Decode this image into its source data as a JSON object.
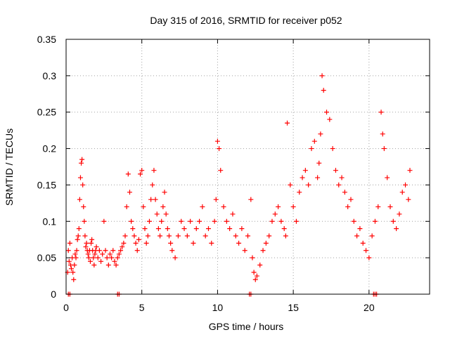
{
  "chart_data": {
    "type": "scatter",
    "title": "Day 315 of 2016, SRMTID for receiver p052",
    "xlabel": "GPS time / hours",
    "ylabel": "SRMTID / TECUs",
    "xlim": [
      0,
      24
    ],
    "ylim": [
      0,
      0.35
    ],
    "xticks": [
      0,
      5,
      10,
      15,
      20
    ],
    "yticks": [
      0,
      0.05,
      0.1,
      0.15,
      0.2,
      0.25,
      0.3,
      0.35
    ],
    "xtick_labels": [
      "0",
      "5",
      "10",
      "15",
      "20"
    ],
    "ytick_labels": [
      "0",
      "0.05",
      "0.1",
      "0.15",
      "0.2",
      "0.25",
      "0.3",
      "0.35"
    ],
    "grid": true,
    "marker": "+",
    "color": "#ff0000",
    "series": [
      {
        "name": "SRMTID",
        "x": [
          0.1,
          0.15,
          0.2,
          0.25,
          0.3,
          0.35,
          0.4,
          0.45,
          0.5,
          0.55,
          0.6,
          0.65,
          0.7,
          0.75,
          0.8,
          0.85,
          0.9,
          0.95,
          1.0,
          1.05,
          1.1,
          1.15,
          1.2,
          1.25,
          1.3,
          1.35,
          1.4,
          1.45,
          1.5,
          1.55,
          1.6,
          1.65,
          1.7,
          1.75,
          1.8,
          1.85,
          1.9,
          1.95,
          2.0,
          2.1,
          2.2,
          2.3,
          2.4,
          2.5,
          2.6,
          2.7,
          2.8,
          2.9,
          3.0,
          3.1,
          3.2,
          3.3,
          3.4,
          3.5,
          3.6,
          3.7,
          3.8,
          3.9,
          4.0,
          4.1,
          4.2,
          4.3,
          4.4,
          4.5,
          4.6,
          4.7,
          4.8,
          4.9,
          5.0,
          5.1,
          5.2,
          5.3,
          5.4,
          5.5,
          5.6,
          5.7,
          5.8,
          5.9,
          6.0,
          6.1,
          6.2,
          6.3,
          6.4,
          6.5,
          6.6,
          6.7,
          6.8,
          6.9,
          7.0,
          7.2,
          7.4,
          7.6,
          7.8,
          8.0,
          8.2,
          8.4,
          8.6,
          8.8,
          9.0,
          9.2,
          9.4,
          9.6,
          9.8,
          9.9,
          10.0,
          10.1,
          10.2,
          10.4,
          10.6,
          10.8,
          11.0,
          11.2,
          11.4,
          11.6,
          11.8,
          12.0,
          12.2,
          12.3,
          12.4,
          12.5,
          12.6,
          12.8,
          13.0,
          13.2,
          13.4,
          13.6,
          13.8,
          14.0,
          14.2,
          14.4,
          14.5,
          14.6,
          14.8,
          15.0,
          15.2,
          15.4,
          15.6,
          15.8,
          16.0,
          16.2,
          16.4,
          16.6,
          16.7,
          16.8,
          16.9,
          17.0,
          17.2,
          17.4,
          17.6,
          17.8,
          18.0,
          18.2,
          18.4,
          18.6,
          18.8,
          19.0,
          19.2,
          19.4,
          19.6,
          19.8,
          20.0,
          20.2,
          20.4,
          20.6,
          20.8,
          20.9,
          21.0,
          21.2,
          21.4,
          21.6,
          21.8,
          22.0,
          22.2,
          22.4,
          22.6,
          22.7
        ],
        "y": [
          0.03,
          0.06,
          0.045,
          0.07,
          0.04,
          0.035,
          0.05,
          0.03,
          0.02,
          0.04,
          0.055,
          0.05,
          0.06,
          0.075,
          0.08,
          0.09,
          0.13,
          0.16,
          0.18,
          0.185,
          0.15,
          0.12,
          0.1,
          0.08,
          0.065,
          0.07,
          0.06,
          0.055,
          0.05,
          0.06,
          0.045,
          0.07,
          0.075,
          0.06,
          0.05,
          0.04,
          0.055,
          0.06,
          0.065,
          0.05,
          0.06,
          0.045,
          0.055,
          0.1,
          0.06,
          0.05,
          0.04,
          0.055,
          0.05,
          0.06,
          0.045,
          0.04,
          0.05,
          0.055,
          0.06,
          0.065,
          0.07,
          0.08,
          0.12,
          0.165,
          0.14,
          0.1,
          0.09,
          0.08,
          0.07,
          0.06,
          0.075,
          0.165,
          0.17,
          0.12,
          0.09,
          0.07,
          0.08,
          0.1,
          0.13,
          0.15,
          0.17,
          0.13,
          0.11,
          0.09,
          0.08,
          0.1,
          0.12,
          0.14,
          0.11,
          0.09,
          0.08,
          0.07,
          0.06,
          0.05,
          0.08,
          0.1,
          0.09,
          0.08,
          0.1,
          0.07,
          0.09,
          0.1,
          0.12,
          0.08,
          0.09,
          0.07,
          0.1,
          0.13,
          0.21,
          0.2,
          0.17,
          0.12,
          0.1,
          0.09,
          0.11,
          0.08,
          0.07,
          0.09,
          0.06,
          0.08,
          0.13,
          0.05,
          0.03,
          0.02,
          0.025,
          0.04,
          0.06,
          0.07,
          0.08,
          0.1,
          0.11,
          0.12,
          0.1,
          0.09,
          0.08,
          0.235,
          0.15,
          0.12,
          0.1,
          0.14,
          0.16,
          0.17,
          0.15,
          0.2,
          0.21,
          0.16,
          0.18,
          0.22,
          0.3,
          0.28,
          0.25,
          0.24,
          0.2,
          0.17,
          0.15,
          0.16,
          0.14,
          0.12,
          0.13,
          0.1,
          0.08,
          0.09,
          0.07,
          0.06,
          0.05,
          0.08,
          0.1,
          0.12,
          0.25,
          0.22,
          0.2,
          0.16,
          0.12,
          0.1,
          0.09,
          0.11,
          0.14,
          0.15,
          0.13,
          0.17
        ]
      }
    ],
    "baseline_ticks_x": [
      0.15,
      0.25,
      3.4,
      3.5,
      12.1,
      12.2,
      20.3,
      20.4,
      20.5
    ]
  }
}
